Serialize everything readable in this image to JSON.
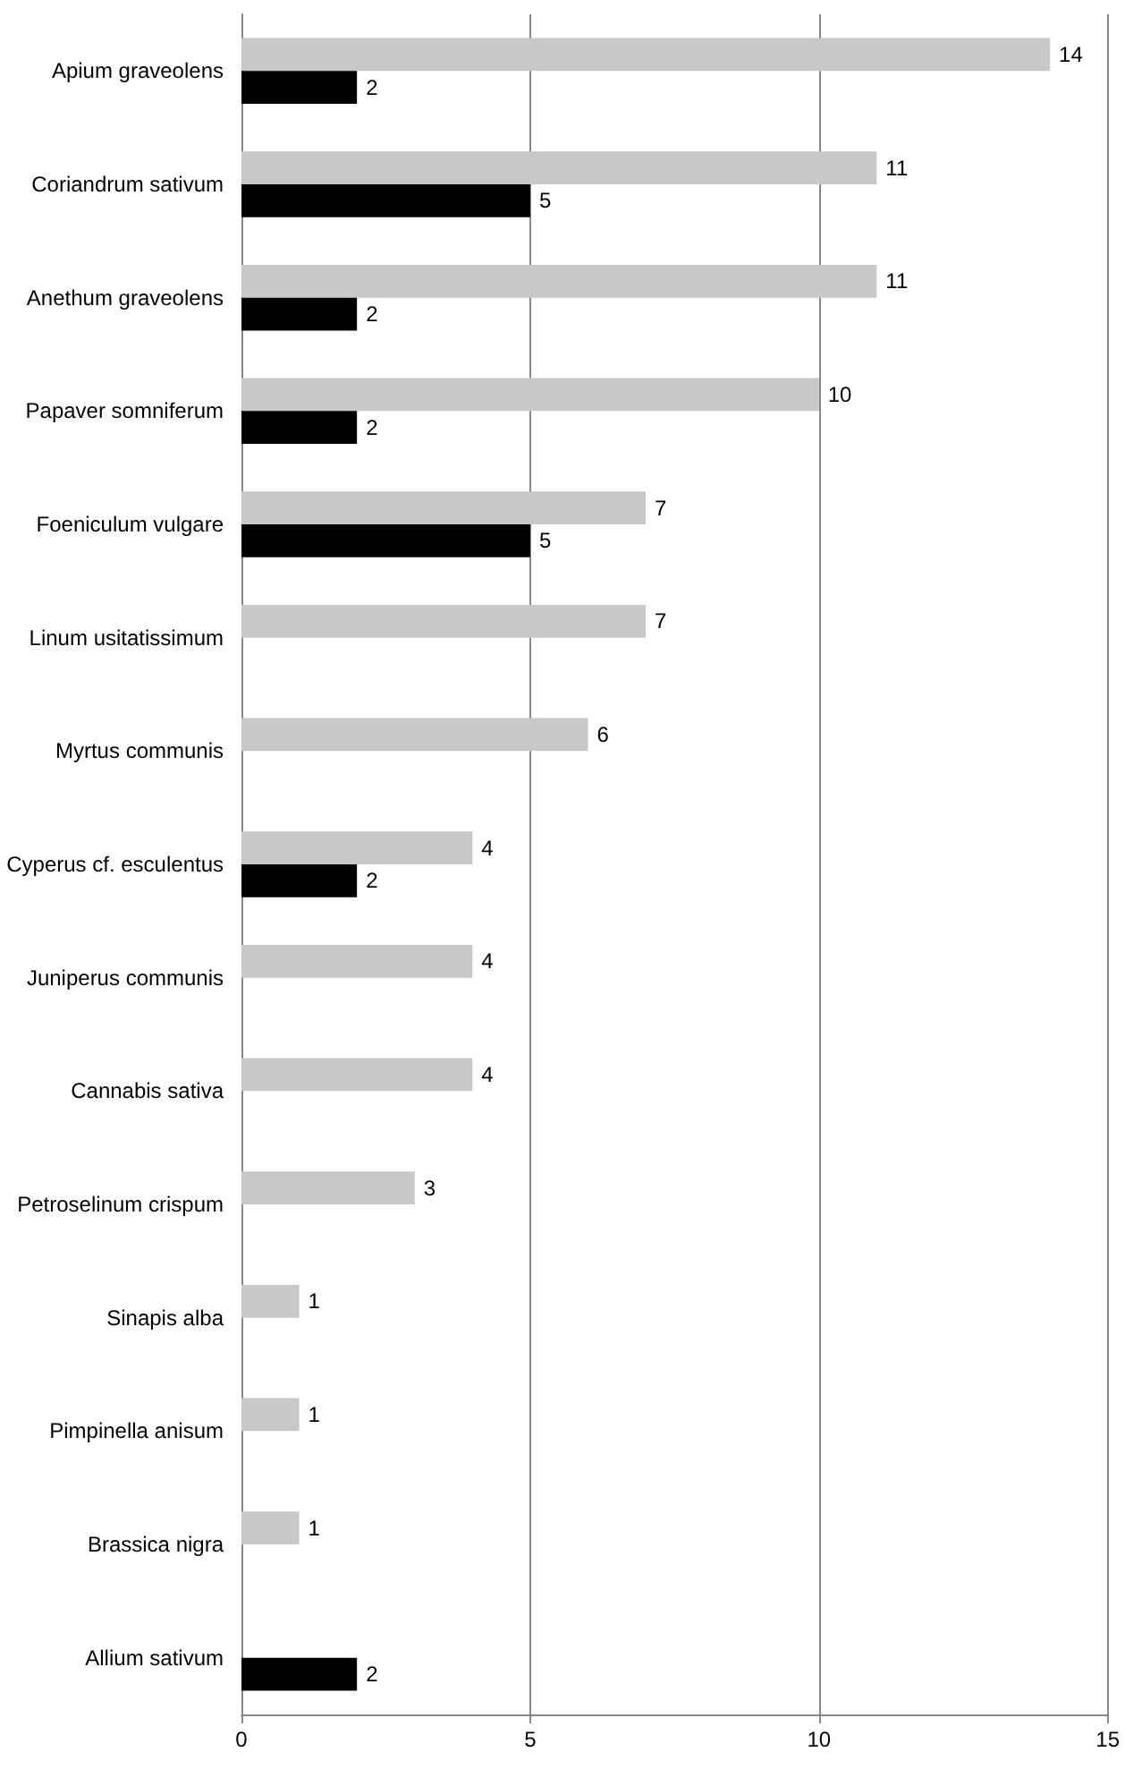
{
  "chart_data": {
    "type": "bar",
    "orientation": "horizontal",
    "categories": [
      "Apium graveolens",
      "Coriandrum sativum",
      "Anethum graveolens",
      "Papaver somniferum",
      "Foeniculum vulgare",
      "Linum usitatissimum",
      "Myrtus communis",
      "Cyperus cf. esculentus",
      "Juniperus communis",
      "Cannabis sativa",
      "Petroselinum crispum",
      "Sinapis alba",
      "Pimpinella anisum",
      "Brassica nigra",
      "Allium sativum"
    ],
    "series": [
      {
        "color": "#c8c8c8",
        "values": [
          14,
          11,
          11,
          10,
          7,
          7,
          6,
          4,
          4,
          4,
          3,
          1,
          1,
          1,
          null
        ]
      },
      {
        "color": "#000000",
        "values": [
          2,
          5,
          2,
          2,
          5,
          null,
          null,
          2,
          null,
          null,
          null,
          null,
          null,
          null,
          2
        ]
      }
    ],
    "xlim": [
      0,
      15
    ],
    "xticks": [
      0,
      5,
      10,
      15
    ],
    "grid": "x",
    "data_labels": true
  }
}
